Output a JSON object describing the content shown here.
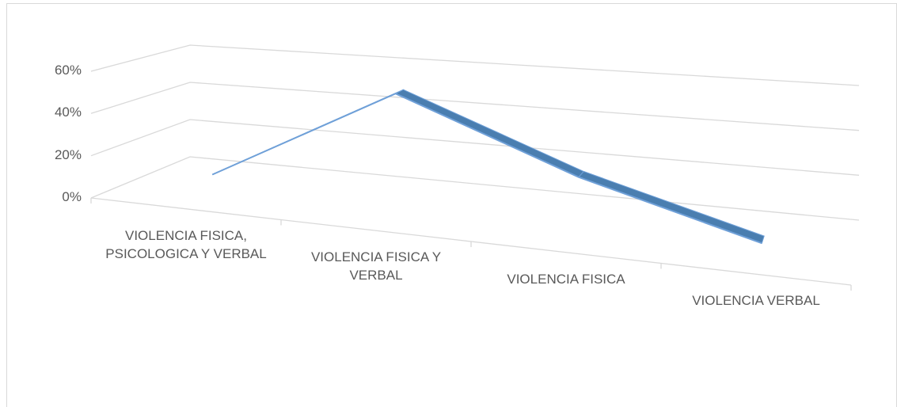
{
  "chart_data": {
    "type": "line3d",
    "categories": [
      "VIOLENCIA FISICA, PSICOLOGICA Y VERBAL",
      "VIOLENCIA FISICA Y VERBAL",
      "VIOLENCIA FISICA",
      "VIOLENCIA VERBAL"
    ],
    "values": [
      10,
      55,
      25,
      5
    ],
    "color": "#4a7eb0",
    "ylim": [
      0,
      60
    ],
    "yticks": [
      {
        "value": 0,
        "label": "0%"
      },
      {
        "value": 20,
        "label": "20%"
      },
      {
        "value": 40,
        "label": "40%"
      },
      {
        "value": 60,
        "label": "60%"
      }
    ],
    "grid": true
  }
}
